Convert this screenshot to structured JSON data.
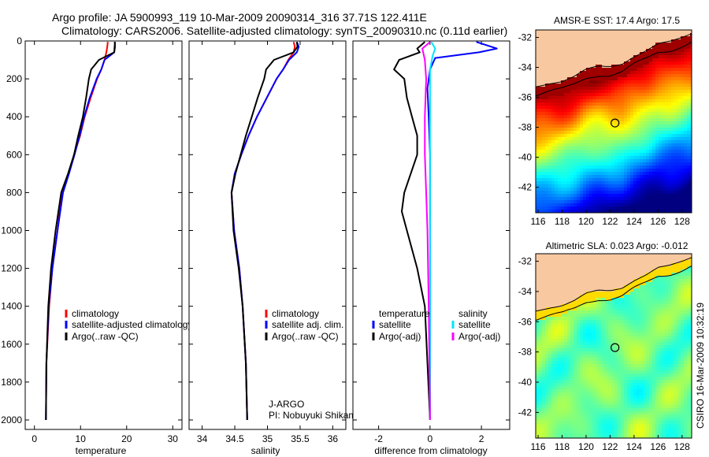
{
  "header": {
    "line1": "Argo profile: JA 5900993_119 10-Mar-2009 20090314_316 37.71S 122.411E",
    "line2": "Climatology: CARS2006. Satellite-adjusted climatology: synTS_20090310.nc (0.11d earlier)"
  },
  "colors": {
    "climatology": "#ff0000",
    "satellite": "#0000ff",
    "argo": "#000000",
    "sal_satellite": "#00e5ff",
    "sal_argo": "#ff00ff",
    "land": "#f8c8a0"
  },
  "chart_data": [
    {
      "type": "line",
      "id": "temperature",
      "xlabel": "temperature",
      "ylabel": "",
      "xlim": [
        -2,
        32
      ],
      "ylim": [
        2050,
        0
      ],
      "y_reversed": true,
      "xticks": [
        0,
        10,
        20,
        30
      ],
      "yticks": [
        0,
        200,
        400,
        600,
        800,
        1000,
        1200,
        1400,
        1600,
        1800,
        2000
      ],
      "legend": {
        "position": "lower-right",
        "entries": [
          "climatology",
          "satellite-adjusted climatology",
          "Argo(..raw -QC)"
        ]
      },
      "series": [
        {
          "name": "climatology",
          "color": "#ff0000",
          "x": [
            15.9,
            15.8,
            15.6,
            15.2,
            14.5,
            13.6,
            12.2,
            10.9,
            9.9,
            8.6,
            7.4,
            6.0,
            5.0,
            3.9,
            3.2,
            2.6,
            2.5
          ],
          "y": [
            5,
            30,
            60,
            100,
            150,
            200,
            300,
            400,
            500,
            600,
            700,
            800,
            1000,
            1200,
            1400,
            1700,
            2000
          ]
        },
        {
          "name": "satellite-adjusted climatology",
          "color": "#0000ff",
          "x": [
            17.4,
            17.5,
            17.3,
            15.2,
            14.5,
            13.5,
            12.0,
            10.8,
            9.8,
            8.7,
            7.5,
            6.2,
            5.0,
            3.9,
            3.1,
            2.6,
            2.5
          ],
          "y": [
            5,
            30,
            60,
            100,
            150,
            200,
            300,
            400,
            500,
            600,
            700,
            800,
            1000,
            1200,
            1400,
            1700,
            2000
          ]
        },
        {
          "name": "Argo(..raw -QC)",
          "color": "#000000",
          "x": [
            17.5,
            17.4,
            17.3,
            14.0,
            12.3,
            11.8,
            11.2,
            10.5,
            9.5,
            8.6,
            7.3,
            5.8,
            4.6,
            3.6,
            3.0,
            2.6,
            2.5
          ],
          "y": [
            5,
            30,
            60,
            100,
            150,
            200,
            300,
            400,
            500,
            600,
            700,
            800,
            1000,
            1200,
            1400,
            1700,
            2000
          ]
        }
      ]
    },
    {
      "type": "line",
      "id": "salinity",
      "xlabel": "salinity",
      "xlim": [
        33.8,
        36.2
      ],
      "ylim": [
        2050,
        0
      ],
      "y_reversed": true,
      "xticks": [
        34,
        34.5,
        35,
        35.5,
        36
      ],
      "xticklabels": [
        "34",
        "34.5",
        "35",
        "35.5",
        "36"
      ],
      "legend": {
        "position": "lower-right",
        "entries": [
          "climatology",
          "satellite adj. clim.",
          "Argo(..raw -QC)"
        ]
      },
      "annotations": [
        "J-ARGO",
        "PI: Nobuyuki Shikama"
      ],
      "series": [
        {
          "name": "climatology",
          "color": "#ff0000",
          "x": [
            35.4,
            35.42,
            35.4,
            35.32,
            35.24,
            35.14,
            34.99,
            34.84,
            34.71,
            34.6,
            34.5,
            34.45,
            34.49,
            34.57,
            34.62,
            34.67,
            34.69
          ],
          "y": [
            5,
            30,
            60,
            100,
            150,
            200,
            300,
            400,
            500,
            600,
            700,
            800,
            1000,
            1200,
            1400,
            1700,
            2000
          ]
        },
        {
          "name": "satellite adj. clim.",
          "color": "#0000ff",
          "x": [
            35.45,
            35.48,
            35.45,
            35.33,
            35.24,
            35.14,
            34.99,
            34.84,
            34.71,
            34.6,
            34.5,
            34.45,
            34.49,
            34.57,
            34.62,
            34.67,
            34.69
          ],
          "y": [
            5,
            30,
            60,
            100,
            150,
            200,
            300,
            400,
            500,
            600,
            700,
            800,
            1000,
            1200,
            1400,
            1700,
            2000
          ]
        },
        {
          "name": "Argo(..raw -QC)",
          "color": "#000000",
          "x": [
            35.45,
            35.46,
            35.4,
            35.1,
            34.98,
            34.95,
            34.85,
            34.76,
            34.67,
            34.59,
            34.51,
            34.45,
            34.48,
            34.56,
            34.62,
            34.67,
            34.69
          ],
          "y": [
            5,
            30,
            60,
            100,
            150,
            200,
            300,
            400,
            500,
            600,
            700,
            800,
            1000,
            1200,
            1400,
            1700,
            2000
          ]
        }
      ]
    },
    {
      "type": "line",
      "id": "difference",
      "xlabel": "difference from climatology",
      "xlim": [
        -3,
        3.1
      ],
      "ylim": [
        2050,
        0
      ],
      "y_reversed": true,
      "xticks": [
        -2,
        0,
        2
      ],
      "legend": {
        "position": "lower-right",
        "headers": [
          "temperature",
          "salinity"
        ],
        "entries": [
          "satellite",
          "Argo(-adj)",
          "satellite",
          "Argo(-adj)"
        ]
      },
      "series": [
        {
          "name": "temperature satellite",
          "color": "#0000ff",
          "x": [
            1.8,
            2.6,
            1.9,
            0.2,
            0.0,
            -0.1,
            -0.05,
            0.0,
            0.0,
            0.0,
            0.0,
            0.0,
            0.0,
            0.0
          ],
          "y": [
            5,
            40,
            60,
            90,
            150,
            250,
            400,
            600,
            800,
            1000,
            1200,
            1400,
            1700,
            2000
          ]
        },
        {
          "name": "temperature Argo(-adj)",
          "color": "#000000",
          "x": [
            -0.2,
            -0.5,
            -0.4,
            -1.2,
            -1.4,
            -1.0,
            -0.9,
            -0.7,
            -0.5,
            -0.5,
            -1.0,
            -1.1,
            -0.9,
            -0.5,
            -0.2,
            -0.1,
            0.0
          ],
          "y": [
            5,
            40,
            60,
            100,
            150,
            200,
            300,
            400,
            500,
            600,
            800,
            900,
            1000,
            1200,
            1400,
            1700,
            2000
          ]
        },
        {
          "name": "salinity satellite",
          "color": "#00e5ff",
          "x": [
            0.05,
            0.2,
            0.1,
            0.0,
            0.0,
            0.0,
            0.0,
            0.0,
            0.0
          ],
          "y": [
            5,
            40,
            80,
            150,
            400,
            800,
            1200,
            1600,
            2000
          ]
        },
        {
          "name": "salinity Argo(-adj)",
          "color": "#ff00ff",
          "x": [
            0.0,
            -0.3,
            -0.2,
            -0.15,
            -0.2,
            -0.2,
            -0.15,
            -0.1,
            -0.05,
            0.0
          ],
          "y": [
            5,
            40,
            100,
            200,
            400,
            600,
            800,
            1000,
            1400,
            2000
          ]
        }
      ]
    },
    {
      "type": "heatmap",
      "id": "sst-map",
      "title": "AMSR-E SST: 17.4 Argo: 17.5",
      "xlim": [
        115.8,
        128.8
      ],
      "ylim": [
        -43.7,
        -31.5
      ],
      "xticks": [
        116,
        118,
        120,
        122,
        124,
        126,
        128
      ],
      "yticks": [
        -32,
        -34,
        -36,
        -38,
        -40,
        -42
      ],
      "marker": {
        "lon": 122.41,
        "lat": -37.71
      }
    },
    {
      "type": "heatmap",
      "id": "sla-map",
      "title": "Altimetric SLA: 0.023 Argo: -0.012",
      "xlim": [
        115.8,
        128.8
      ],
      "ylim": [
        -43.7,
        -31.5
      ],
      "xticks": [
        116,
        118,
        120,
        122,
        124,
        126,
        128
      ],
      "yticks": [
        -32,
        -34,
        -36,
        -38,
        -40,
        -42
      ],
      "marker": {
        "lon": 122.41,
        "lat": -37.71
      }
    }
  ],
  "footer": {
    "credit": "CSIRO 16-Mar-2009 10:32:19"
  }
}
